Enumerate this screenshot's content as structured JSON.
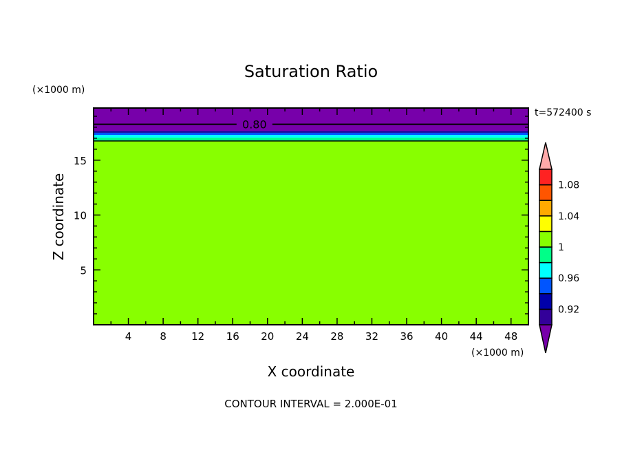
{
  "chart_data": {
    "type": "heatmap",
    "title": "Saturation Ratio",
    "xlabel": "X coordinate",
    "ylabel": "Z coordinate",
    "x_unit": "(×1000 m)",
    "y_unit": "(×1000 m)",
    "time_label": "t=572400 s",
    "footer": "CONTOUR INTERVAL = 2.000E-01",
    "xlim": [
      0,
      50
    ],
    "ylim": [
      0,
      19.75
    ],
    "x_ticks": [
      4,
      8,
      12,
      16,
      20,
      24,
      28,
      32,
      36,
      40,
      44,
      48
    ],
    "y_ticks": [
      5,
      10,
      15
    ],
    "bands": [
      {
        "z0": 0,
        "z1": 16.75,
        "color": "#88ff00"
      },
      {
        "z0": 16.75,
        "z1": 17.05,
        "color": "#00ff88"
      },
      {
        "z0": 17.05,
        "z1": 17.3,
        "color": "#00ffff"
      },
      {
        "z0": 17.3,
        "z1": 17.5,
        "color": "#0055ff"
      },
      {
        "z0": 17.5,
        "z1": 17.64,
        "color": "#000099"
      },
      {
        "z0": 17.64,
        "z1": 19.75,
        "color": "#7700aa"
      }
    ],
    "contours": [
      {
        "level": "0.80",
        "z": 18.27,
        "label_x": 18.5
      }
    ],
    "colorbar": {
      "colors": [
        "#330099",
        "#0000aa",
        "#0055ff",
        "#00ffff",
        "#00ff88",
        "#88ff00",
        "#ffff00",
        "#ffaa00",
        "#ff5500",
        "#ff2222"
      ],
      "over_color": "#ffaaaa",
      "under_color": "#7700aa",
      "labels": [
        {
          "text": "0.92",
          "index": 1
        },
        {
          "text": "0.96",
          "index": 3
        },
        {
          "text": "1",
          "index": 5
        },
        {
          "text": "1.04",
          "index": 7
        },
        {
          "text": "1.08",
          "index": 9
        }
      ]
    }
  }
}
